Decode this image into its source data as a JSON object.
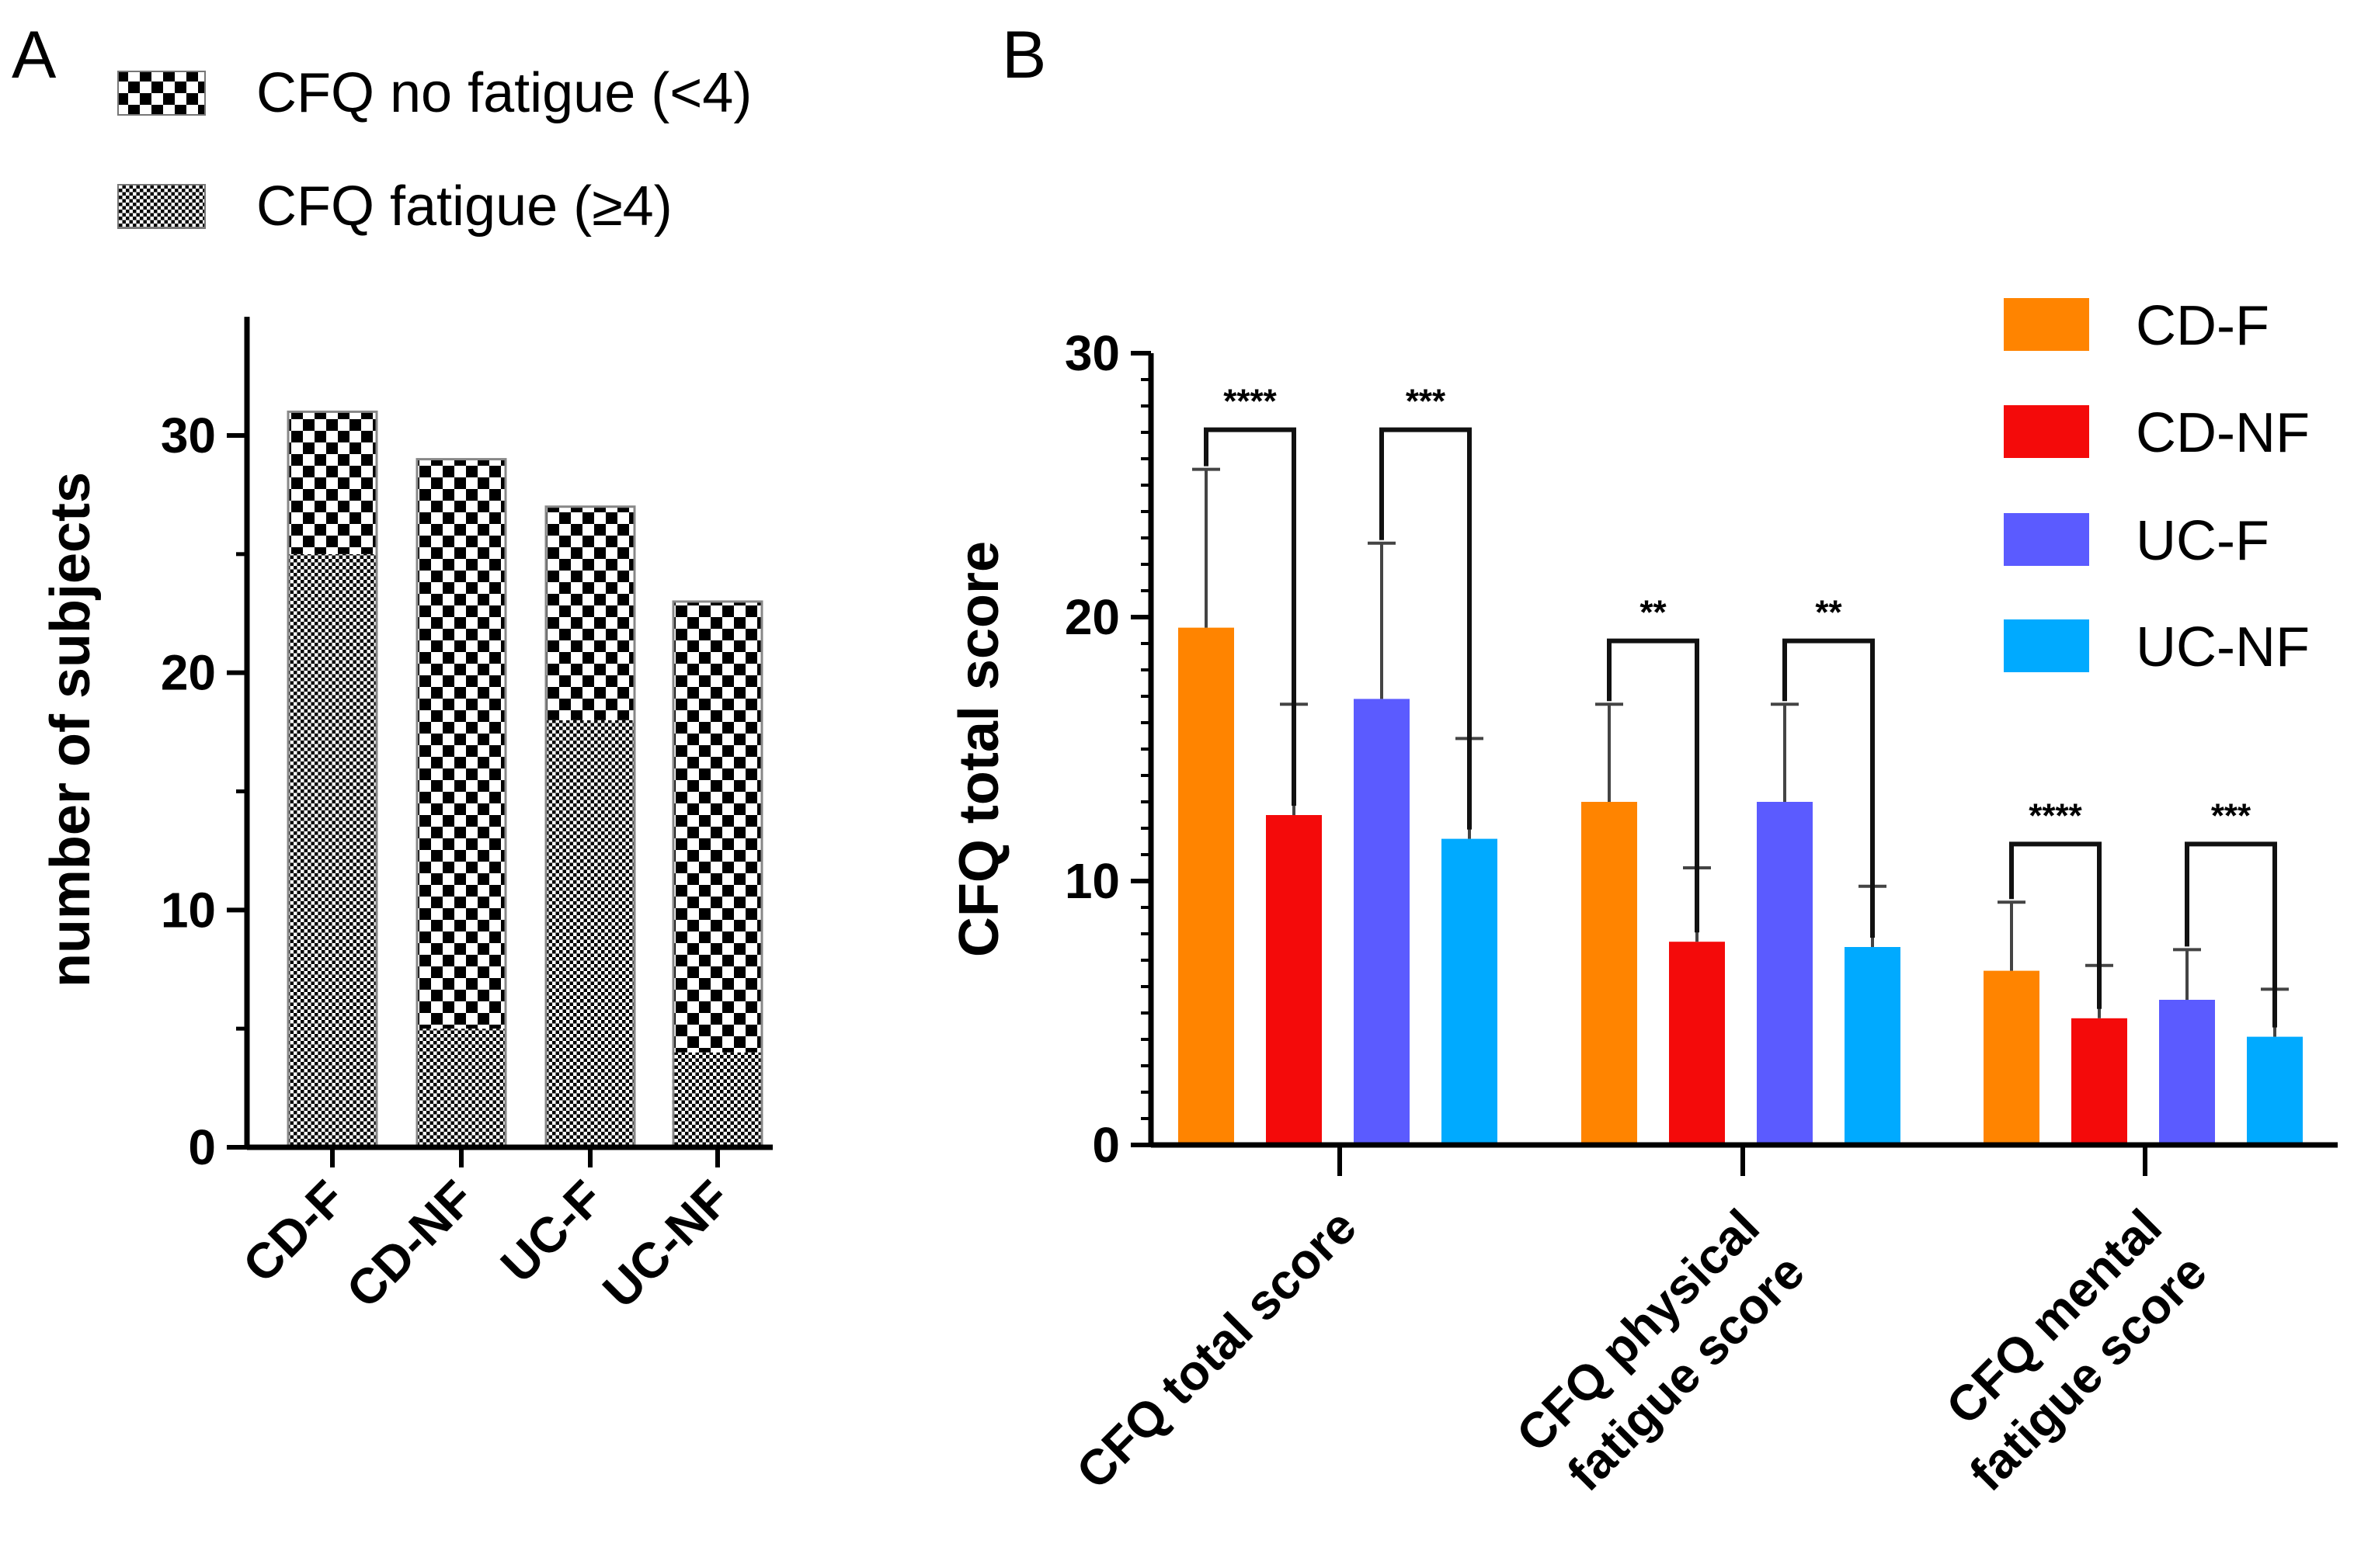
{
  "panel_labels": [
    "A",
    "B"
  ],
  "chart_data": [
    {
      "type": "bar",
      "stacked": true,
      "panel": "A",
      "categories": [
        "CD-F",
        "CD-NF",
        "UC-F",
        "UC-NF"
      ],
      "series": [
        {
          "name": "CFQ fatigue (≥4)",
          "pattern": "fine-checker",
          "values": [
            25,
            5,
            18,
            4
          ]
        },
        {
          "name": "CFQ no fatigue (<4)",
          "pattern": "coarse-checker",
          "values": [
            6,
            24,
            9,
            19
          ]
        }
      ],
      "totals": [
        31,
        29,
        27,
        23
      ],
      "ylabel": "number of subjects",
      "xlabel": "",
      "yticks": [
        0,
        10,
        20,
        30
      ],
      "ylim": [
        0,
        35
      ],
      "legend_position": "top"
    },
    {
      "type": "bar",
      "grouped": true,
      "panel": "B",
      "categories": [
        "CFQ total score",
        "CFQ physical fatigue score",
        "CFQ mental fatigue score"
      ],
      "category_lines": [
        [
          "CFQ total score"
        ],
        [
          "CFQ physical",
          "fatigue score"
        ],
        [
          "CFQ mental",
          "fatigue score"
        ]
      ],
      "series": [
        {
          "name": "CD-F",
          "color": "#FF8400",
          "values": [
            19.6,
            13.0,
            6.6
          ],
          "errors": [
            6.0,
            3.7,
            2.6
          ]
        },
        {
          "name": "CD-NF",
          "color": "#F40A0A",
          "values": [
            12.5,
            7.7,
            4.8
          ],
          "errors": [
            4.2,
            2.8,
            2.0
          ]
        },
        {
          "name": "UC-F",
          "color": "#5B5BFF",
          "values": [
            16.9,
            13.0,
            5.5
          ],
          "errors": [
            5.9,
            3.7,
            1.9
          ]
        },
        {
          "name": "UC-NF",
          "color": "#00AAFF",
          "values": [
            11.6,
            7.5,
            4.1
          ],
          "errors": [
            3.8,
            2.3,
            1.8
          ]
        }
      ],
      "significance": [
        {
          "group": 0,
          "from": 0,
          "to": 1,
          "label": "****",
          "bracket": 27.1
        },
        {
          "group": 0,
          "from": 2,
          "to": 3,
          "label": "***",
          "bracket": 27.1
        },
        {
          "group": 1,
          "from": 0,
          "to": 1,
          "label": "**",
          "bracket": 19.1
        },
        {
          "group": 1,
          "from": 2,
          "to": 3,
          "label": "**",
          "bracket": 19.1
        },
        {
          "group": 2,
          "from": 0,
          "to": 1,
          "label": "****",
          "bracket": 11.4
        },
        {
          "group": 2,
          "from": 2,
          "to": 3,
          "label": "***",
          "bracket": 11.4
        }
      ],
      "ylabel": "CFQ total score",
      "xlabel": "",
      "yticks": [
        0,
        10,
        20,
        30
      ],
      "ylim": [
        0,
        30
      ],
      "legend_position": "top-right"
    }
  ]
}
